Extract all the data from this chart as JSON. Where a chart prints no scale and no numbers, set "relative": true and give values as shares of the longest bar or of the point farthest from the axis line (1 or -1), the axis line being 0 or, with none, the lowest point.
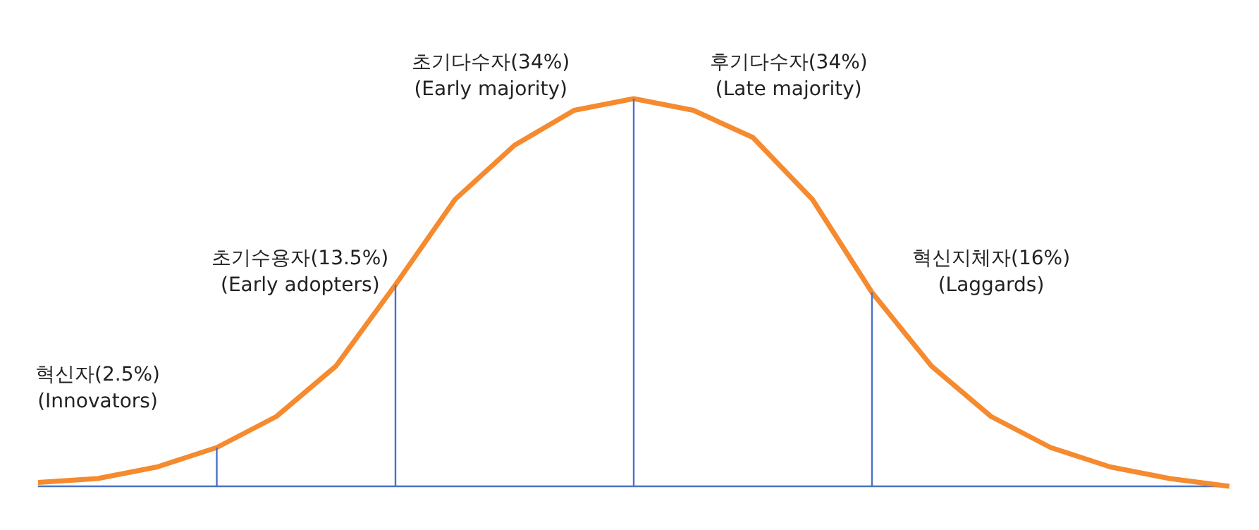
{
  "chart_data": {
    "type": "line",
    "relative": true,
    "tick_labels": false,
    "grid": false,
    "marker": "none",
    "line_style": "solid",
    "categories": [
      null,
      null,
      null,
      null,
      null,
      null,
      null,
      null,
      null,
      null,
      null,
      null,
      null,
      null,
      null,
      null,
      null,
      null,
      null,
      null,
      null
    ],
    "series": [
      {
        "color": "#f58a2e",
        "values": [
          0.01,
          0.02,
          0.05,
          0.1,
          0.18,
          0.31,
          0.52,
          0.74,
          0.88,
          0.97,
          1,
          0.97,
          0.9,
          0.74,
          0.5,
          0.31,
          0.18,
          0.1,
          0.05,
          0.02,
          0.0
        ]
      }
    ],
    "annotations": [
      "혁신자(2.5%)\n(Innovators)",
      "초기수용자(13.5%)\n(Early adopters)",
      "초기다수자(34%)\n(Early majority)",
      "후기다수자(34%)\n(Late majority)",
      "혁신지체자(16%)\n(Laggards)"
    ]
  }
}
